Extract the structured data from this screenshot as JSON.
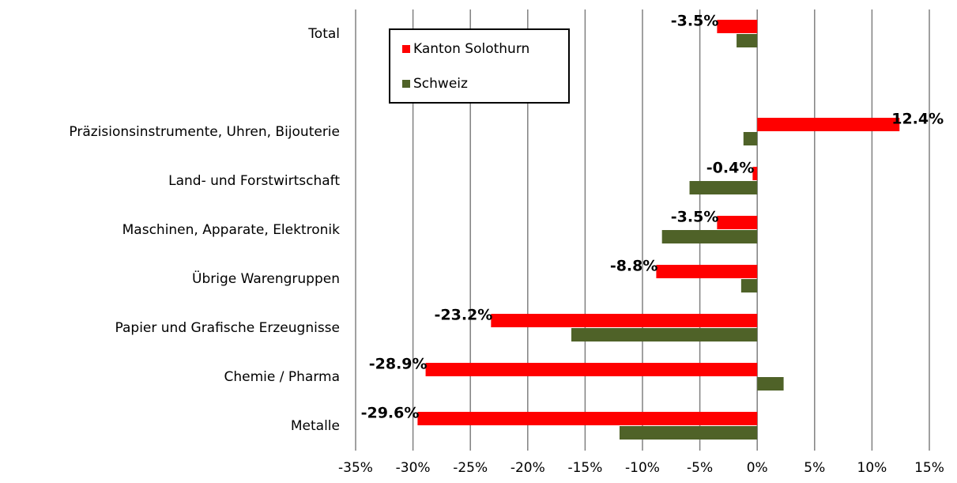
{
  "chart_data": {
    "type": "hbar",
    "categories": [
      "Total",
      null,
      "Präzisionsinstrumente, Uhren, Bijouterie",
      "Land- und Forstwirtschaft",
      "Maschinen, Apparate, Elektronik",
      "Übrige Warengruppen",
      "Papier und Grafische Erzeugnisse",
      "Chemie / Pharma",
      "Metalle"
    ],
    "series": [
      {
        "name": "Kanton Solothurn",
        "color": "#ff0000",
        "values": [
          -3.5,
          null,
          12.4,
          -0.4,
          -3.5,
          -8.8,
          -23.2,
          -28.9,
          -29.6
        ],
        "value_labels": [
          "-3.5%",
          null,
          "12.4%",
          "-0.4%",
          "-3.5%",
          "-8.8%",
          "-23.2%",
          "-28.9%",
          "-29.6%"
        ]
      },
      {
        "name": "Schweiz",
        "color": "#4f6228",
        "values": [
          -1.8,
          null,
          -1.2,
          -5.9,
          -8.3,
          -1.4,
          -16.2,
          2.3,
          -12.0
        ]
      }
    ],
    "xlim": [
      -35,
      15
    ],
    "xticks": [
      {
        "value": -35,
        "label": "-35%"
      },
      {
        "value": -30,
        "label": "-30%"
      },
      {
        "value": -25,
        "label": "-25%"
      },
      {
        "value": -20,
        "label": "-20%"
      },
      {
        "value": -15,
        "label": "-15%"
      },
      {
        "value": -10,
        "label": "-10%"
      },
      {
        "value": -5,
        "label": "-5%"
      },
      {
        "value": 0,
        "label": "0%"
      },
      {
        "value": 5,
        "label": "5%"
      },
      {
        "value": 10,
        "label": "10%"
      },
      {
        "value": 15,
        "label": "15%"
      }
    ],
    "grid": true,
    "legend": "top-left"
  }
}
